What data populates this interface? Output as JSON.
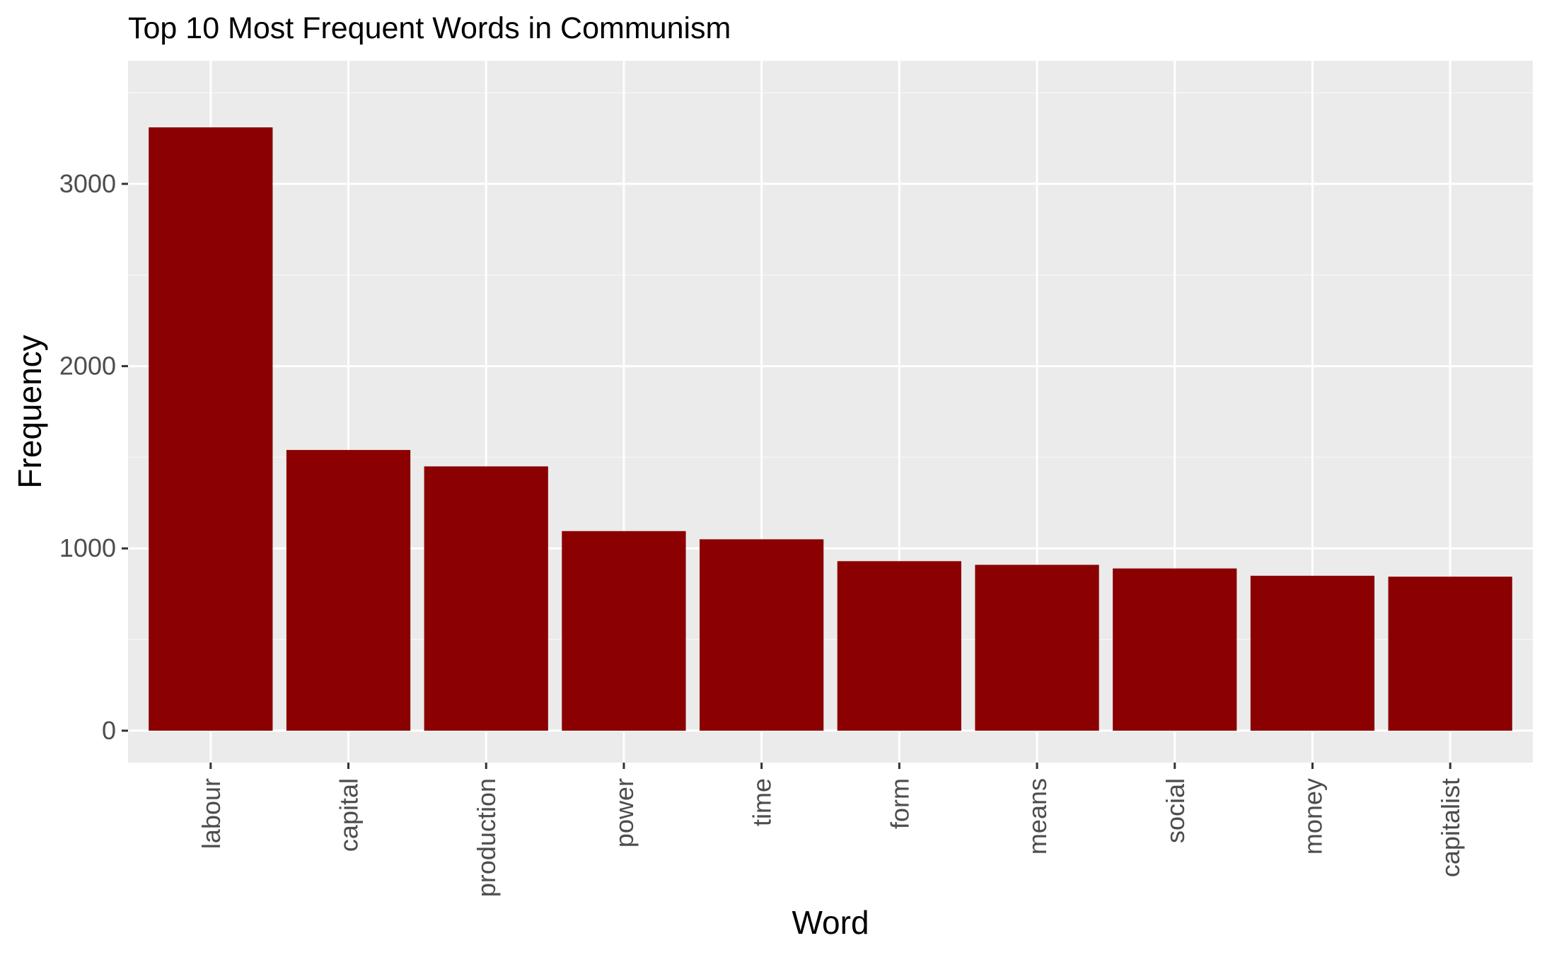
{
  "chart_data": {
    "type": "bar",
    "title": "Top 10 Most Frequent Words in Communism",
    "xlabel": "Word",
    "ylabel": "Frequency",
    "categories": [
      "labour",
      "capital",
      "production",
      "power",
      "time",
      "form",
      "means",
      "social",
      "money",
      "capitalist"
    ],
    "values": [
      3310,
      1540,
      1450,
      1095,
      1050,
      930,
      910,
      890,
      850,
      845
    ],
    "yticks": [
      0,
      1000,
      2000,
      3000
    ],
    "ytick_labels": [
      "0",
      "1000",
      "2000",
      "3000"
    ],
    "ylim": [
      -175,
      3675
    ],
    "grid": true,
    "legend": "none",
    "colors": {
      "bar": "#8B0000",
      "panel": "#EBEBEB",
      "grid_major": "#FFFFFF",
      "grid_minor": "#F5F5F5",
      "tick_label": "#4D4D4D",
      "tick_mark": "#333333"
    }
  }
}
